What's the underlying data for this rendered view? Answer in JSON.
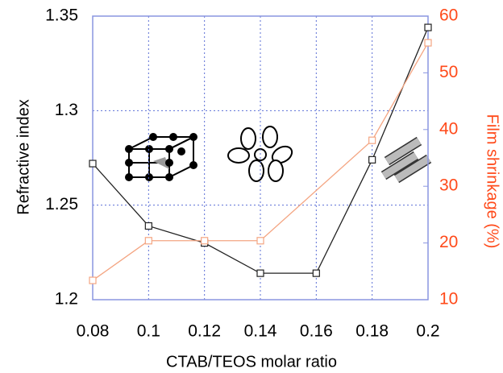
{
  "chart_data": {
    "type": "line",
    "xlabel": "CTAB/TEOS molar ratio",
    "ylabel": "Refractive index",
    "y2label": "Film shrinkage  (%)",
    "xlim": [
      0.08,
      0.2
    ],
    "xticks": [
      0.08,
      0.1,
      0.12,
      0.14,
      0.16,
      0.18,
      0.2
    ],
    "ylim": [
      1.2,
      1.35
    ],
    "yticks": [
      1.2,
      1.25,
      1.3,
      1.35
    ],
    "y2lim": [
      10,
      60
    ],
    "y2ticks": [
      10,
      20,
      30,
      40,
      50,
      60
    ],
    "grid": true,
    "series": [
      {
        "color": "#222222",
        "axis": "y",
        "x": [
          0.08,
          0.1,
          0.12,
          0.14,
          0.16,
          0.18,
          0.2
        ],
        "values": [
          1.272,
          1.239,
          1.23,
          1.214,
          1.214,
          1.274,
          1.344
        ]
      },
      {
        "color": "#f4a582",
        "axis": "y2",
        "x": [
          0.08,
          0.1,
          0.12,
          0.14,
          0.18,
          0.2
        ],
        "values": [
          13.4,
          20.4,
          20.4,
          20.4,
          38.1,
          55.3
        ]
      }
    ]
  }
}
